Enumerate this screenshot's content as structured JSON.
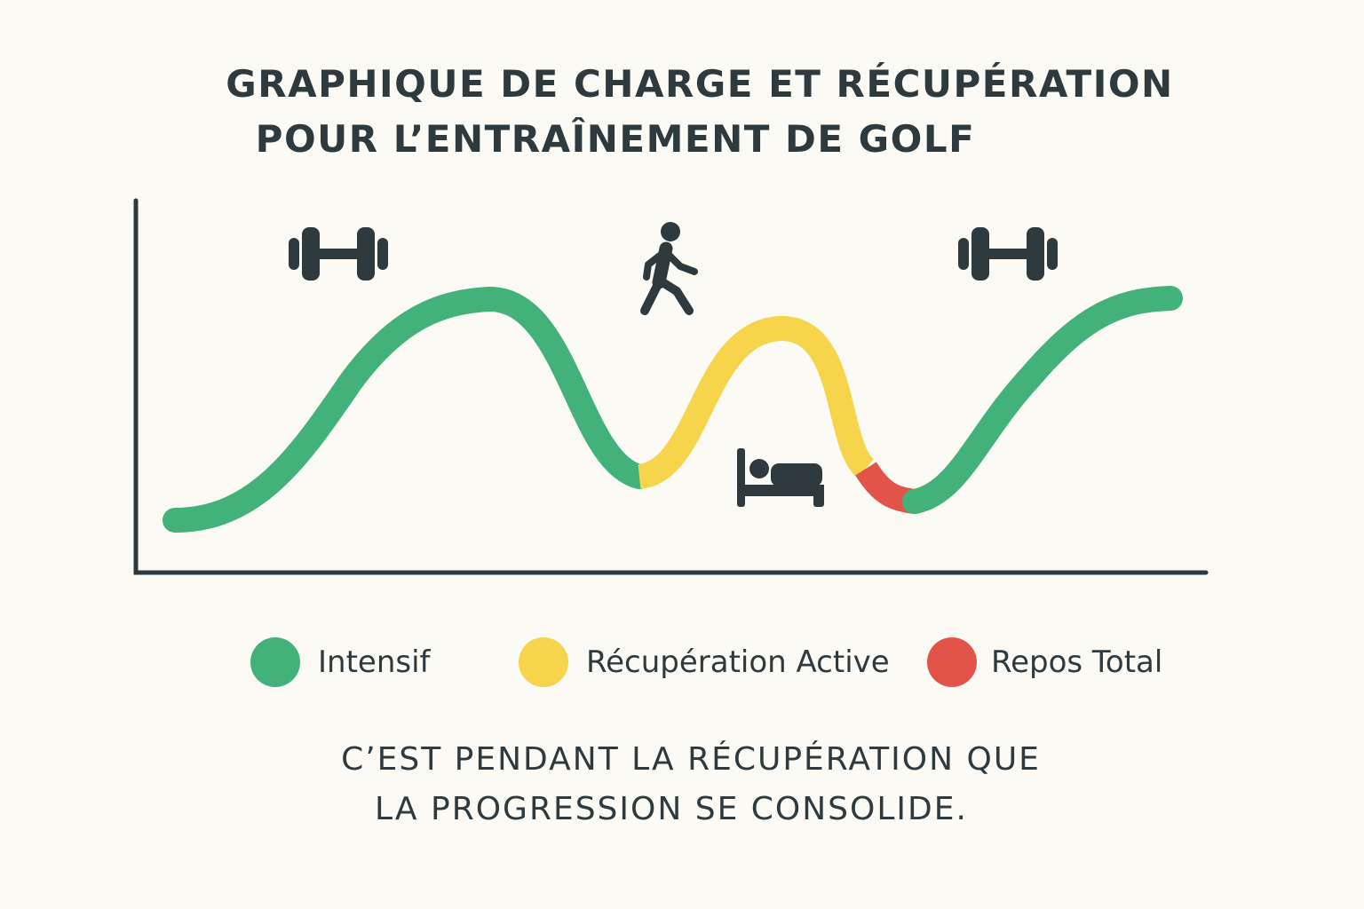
{
  "title": {
    "line1": "GRAPHIQUE DE CHARGE ET RÉCUPÉRATION",
    "line2": "POUR L’ENTRAÎNEMENT DE GOLF"
  },
  "colors": {
    "intensif": "#43b27a",
    "recuperation_active": "#f6d54c",
    "repos_total": "#e2534a",
    "axis": "#2e3a3e",
    "icon": "#2e3a3e",
    "background": "#fbfaf5"
  },
  "icons": {
    "left_peak": "dumbbell-icon",
    "center_top": "walking-person-icon",
    "center_valley": "bed-icon",
    "right_peak": "dumbbell-icon"
  },
  "legend": [
    {
      "label": "Intensif",
      "color": "#43b27a"
    },
    {
      "label": "Récupération Active",
      "color": "#f6d54c"
    },
    {
      "label": "Repos Total",
      "color": "#e2534a"
    }
  ],
  "caption": {
    "line1": "C’EST PENDANT LA RÉCUPÉRATION QUE",
    "line2": "LA PROGRESSION SE CONSOLIDE."
  }
}
